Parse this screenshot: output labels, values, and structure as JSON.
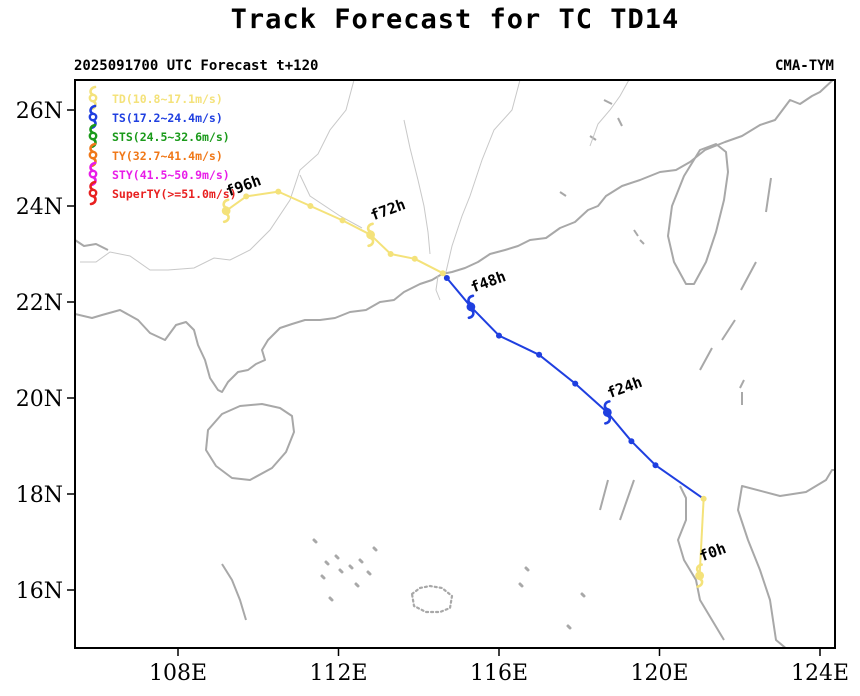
{
  "title": "Track Forecast for TC TD14",
  "subtitle_left": "2025091700 UTC Forecast t+120",
  "subtitle_right": "CMA-TYM",
  "colors": {
    "TD": "#f4e27a",
    "TS": "#1f3fe0",
    "STS": "#1a9a1a",
    "TY": "#f07818",
    "STY": "#e81ce8",
    "SuperTY": "#e82020",
    "coast": "#a8a8a8",
    "border": "#c0c0c0"
  },
  "legend": [
    {
      "key": "TD",
      "label": "TD(10.8~17.1m/s)",
      "icon": "typhoon-symbol-icon"
    },
    {
      "key": "TS",
      "label": "TS(17.2~24.4m/s)",
      "icon": "typhoon-symbol-icon"
    },
    {
      "key": "STS",
      "label": "STS(24.5~32.6m/s)",
      "icon": "typhoon-symbol-icon"
    },
    {
      "key": "TY",
      "label": "TY(32.7~41.4m/s)",
      "icon": "typhoon-symbol-icon"
    },
    {
      "key": "STY",
      "label": "STY(41.5~50.9m/s)",
      "icon": "typhoon-symbol-icon"
    },
    {
      "key": "SuperTY",
      "label": "SuperTY(>=51.0m/s)",
      "icon": "typhoon-symbol-icon"
    }
  ],
  "chart_data": {
    "type": "map",
    "x_ticks": [
      108,
      112,
      116,
      120,
      124
    ],
    "x_tick_labels": [
      "108E",
      "112E",
      "116E",
      "120E",
      "124E"
    ],
    "y_ticks": [
      16,
      18,
      20,
      22,
      24,
      26
    ],
    "y_tick_labels": [
      "16N",
      "18N",
      "20N",
      "22N",
      "24N",
      "26N"
    ],
    "xlim": [
      105.9,
      124.4
    ],
    "ylim": [
      14.8,
      26.5
    ],
    "track": [
      {
        "lon": 121.0,
        "lat": 16.3,
        "cat": "TD"
      },
      {
        "lon": 121.1,
        "lat": 17.9,
        "cat": "TD"
      },
      {
        "lon": 119.9,
        "lat": 18.6,
        "cat": "TS"
      },
      {
        "lon": 119.3,
        "lat": 19.1,
        "cat": "TS"
      },
      {
        "lon": 118.7,
        "lat": 19.7,
        "cat": "TS"
      },
      {
        "lon": 117.9,
        "lat": 20.3,
        "cat": "TS"
      },
      {
        "lon": 117.0,
        "lat": 20.9,
        "cat": "TS"
      },
      {
        "lon": 116.0,
        "lat": 21.3,
        "cat": "TS"
      },
      {
        "lon": 115.3,
        "lat": 21.9,
        "cat": "TS"
      },
      {
        "lon": 114.7,
        "lat": 22.5,
        "cat": "TS"
      },
      {
        "lon": 114.6,
        "lat": 22.6,
        "cat": "TD"
      },
      {
        "lon": 113.9,
        "lat": 22.9,
        "cat": "TD"
      },
      {
        "lon": 113.3,
        "lat": 23.0,
        "cat": "TD"
      },
      {
        "lon": 112.8,
        "lat": 23.4,
        "cat": "TD"
      },
      {
        "lon": 112.1,
        "lat": 23.7,
        "cat": "TD"
      },
      {
        "lon": 111.3,
        "lat": 24.0,
        "cat": "TD"
      },
      {
        "lon": 110.5,
        "lat": 24.3,
        "cat": "TD"
      },
      {
        "lon": 109.7,
        "lat": 24.2,
        "cat": "TD"
      },
      {
        "lon": 109.2,
        "lat": 23.9,
        "cat": "TD"
      }
    ],
    "forecast_labels": [
      {
        "text": "f0h",
        "lon": 121.0,
        "lat": 16.3,
        "cat": "TD"
      },
      {
        "text": "f24h",
        "lon": 118.7,
        "lat": 19.7,
        "cat": "TS"
      },
      {
        "text": "f48h",
        "lon": 115.3,
        "lat": 21.9,
        "cat": "TS"
      },
      {
        "text": "f72h",
        "lon": 112.8,
        "lat": 23.4,
        "cat": "TD"
      },
      {
        "text": "f96h",
        "lon": 109.2,
        "lat": 23.9,
        "cat": "TD"
      }
    ]
  }
}
